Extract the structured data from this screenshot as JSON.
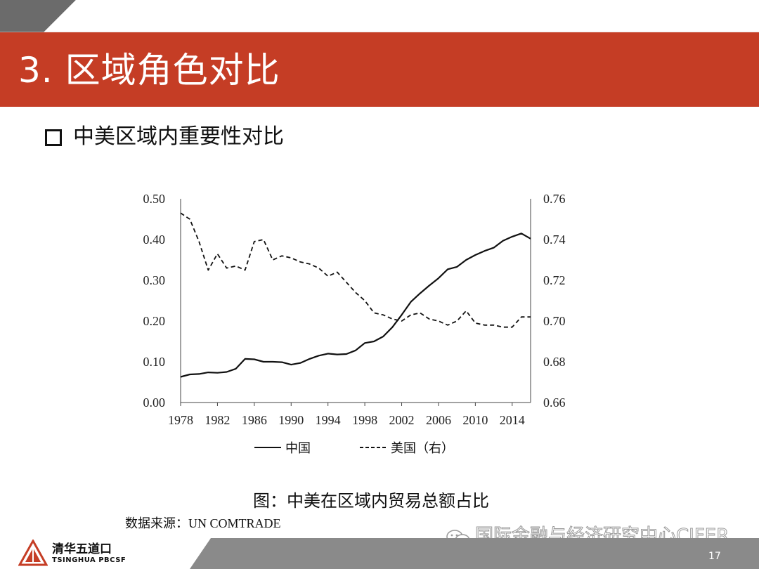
{
  "slide": {
    "title": "3. 区域角色对比",
    "subtitle": "中美区域内重要性对比",
    "caption": "图：中美在区域内贸易总额占比",
    "source": "数据来源：UN COMTRADE",
    "page_number": "17",
    "logo_cn": "清华五道口",
    "logo_en": "TSINGHUA PBCSF",
    "watermark": "国际金融与经济研究中心CIFER",
    "accent_color": "#c53d25"
  },
  "chart_data": {
    "type": "line",
    "x_ticks": [
      "1978",
      "1982",
      "1986",
      "1990",
      "1994",
      "1998",
      "2002",
      "2006",
      "2010",
      "2014"
    ],
    "y_left_ticks": [
      "0.50",
      "0.40",
      "0.30",
      "0.20",
      "0.10",
      "0.00"
    ],
    "y_right_ticks": [
      "0.76",
      "0.74",
      "0.72",
      "0.70",
      "0.68",
      "0.66"
    ],
    "ylim_left": [
      0,
      0.5
    ],
    "ylim_right": [
      0.66,
      0.76
    ],
    "xlim": [
      1978,
      2016
    ],
    "legend_position": "bottom",
    "series": [
      {
        "name": "中国",
        "axis": "left",
        "style": "solid",
        "x": [
          1978,
          1979,
          1980,
          1981,
          1982,
          1983,
          1984,
          1985,
          1986,
          1987,
          1988,
          1989,
          1990,
          1991,
          1992,
          1993,
          1994,
          1995,
          1996,
          1997,
          1998,
          1999,
          2000,
          2001,
          2002,
          2003,
          2004,
          2005,
          2006,
          2007,
          2008,
          2009,
          2010,
          2011,
          2012,
          2013,
          2014,
          2015,
          2016
        ],
        "values": [
          0.063,
          0.069,
          0.07,
          0.074,
          0.073,
          0.075,
          0.083,
          0.107,
          0.106,
          0.1,
          0.1,
          0.099,
          0.093,
          0.097,
          0.107,
          0.115,
          0.12,
          0.118,
          0.119,
          0.128,
          0.146,
          0.15,
          0.162,
          0.185,
          0.215,
          0.247,
          0.268,
          0.287,
          0.305,
          0.327,
          0.333,
          0.35,
          0.362,
          0.372,
          0.38,
          0.397,
          0.407,
          0.415,
          0.402
        ]
      },
      {
        "name": "美国（右）",
        "axis": "right",
        "style": "dashed",
        "x": [
          1978,
          1979,
          1980,
          1981,
          1982,
          1983,
          1984,
          1985,
          1986,
          1987,
          1988,
          1989,
          1990,
          1991,
          1992,
          1993,
          1994,
          1995,
          1996,
          1997,
          1998,
          1999,
          2000,
          2001,
          2002,
          2003,
          2004,
          2005,
          2006,
          2007,
          2008,
          2009,
          2010,
          2011,
          2012,
          2013,
          2014,
          2015,
          2016
        ],
        "values": [
          0.753,
          0.75,
          0.739,
          0.725,
          0.733,
          0.726,
          0.727,
          0.725,
          0.739,
          0.74,
          0.73,
          0.732,
          0.731,
          0.729,
          0.728,
          0.726,
          0.722,
          0.724,
          0.719,
          0.714,
          0.71,
          0.704,
          0.703,
          0.701,
          0.7,
          0.703,
          0.704,
          0.701,
          0.7,
          0.698,
          0.7,
          0.705,
          0.699,
          0.698,
          0.698,
          0.697,
          0.697,
          0.702,
          0.702
        ]
      }
    ]
  }
}
